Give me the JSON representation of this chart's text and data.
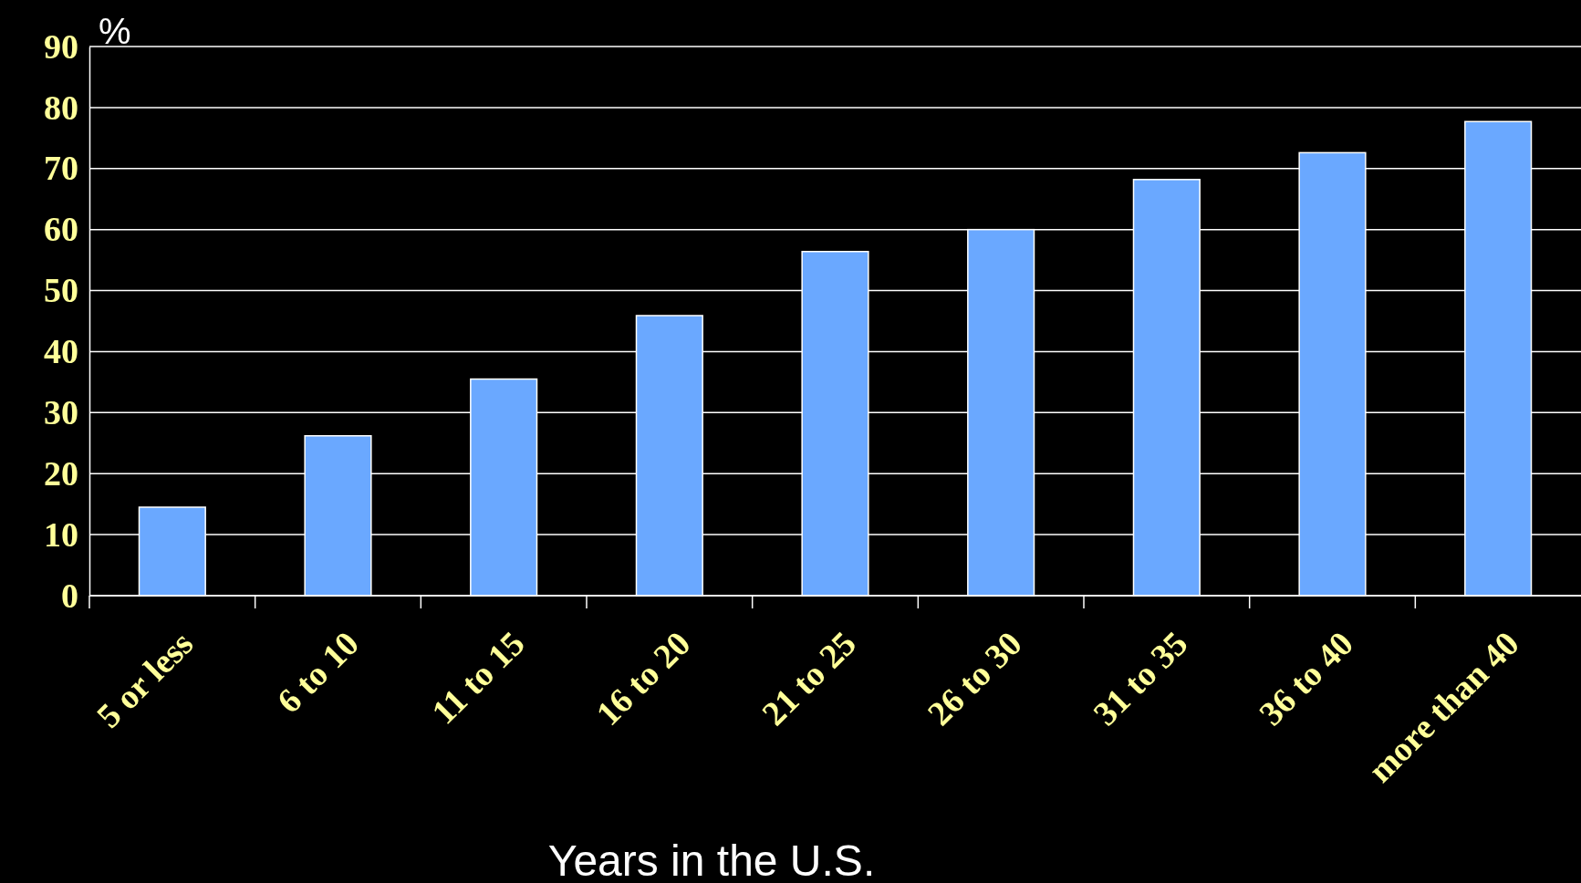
{
  "chart_data": {
    "type": "bar",
    "xlabel": "Years in the U.S.",
    "ylabel": "%",
    "categories": [
      "5 or less",
      "6 to 10",
      "11 to 15",
      "16 to 20",
      "21 to 25",
      "26 to 30",
      "31 to 35",
      "36 to 40",
      "more than 40"
    ],
    "values": [
      14.5,
      26.2,
      35.5,
      45.9,
      56.4,
      60,
      68.2,
      72.6,
      77.7
    ],
    "color": "#6aa8ff",
    "ylim": [
      0,
      90
    ],
    "yticks": [
      0,
      10,
      20,
      30,
      40,
      50,
      60,
      70,
      80,
      90
    ],
    "grid": "y"
  }
}
